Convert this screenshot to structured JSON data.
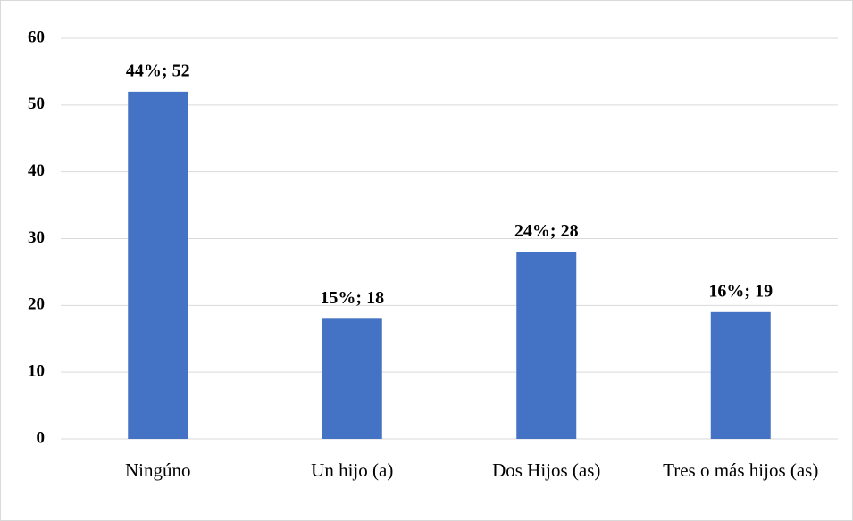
{
  "chart_data": {
    "type": "bar",
    "categories": [
      "Ningúno",
      "Un hijo (a)",
      "Dos Hijos (as)",
      "Tres o más hijos (as)"
    ],
    "values": [
      52,
      18,
      28,
      19
    ],
    "value_labels": [
      "44%; 52",
      "15%; 18",
      "24%; 28",
      "16%; 19"
    ],
    "color": "#4472c4",
    "ylim": [
      0,
      60
    ],
    "yticks": [
      0,
      10,
      20,
      30,
      40,
      50,
      60
    ],
    "grid": true
  }
}
